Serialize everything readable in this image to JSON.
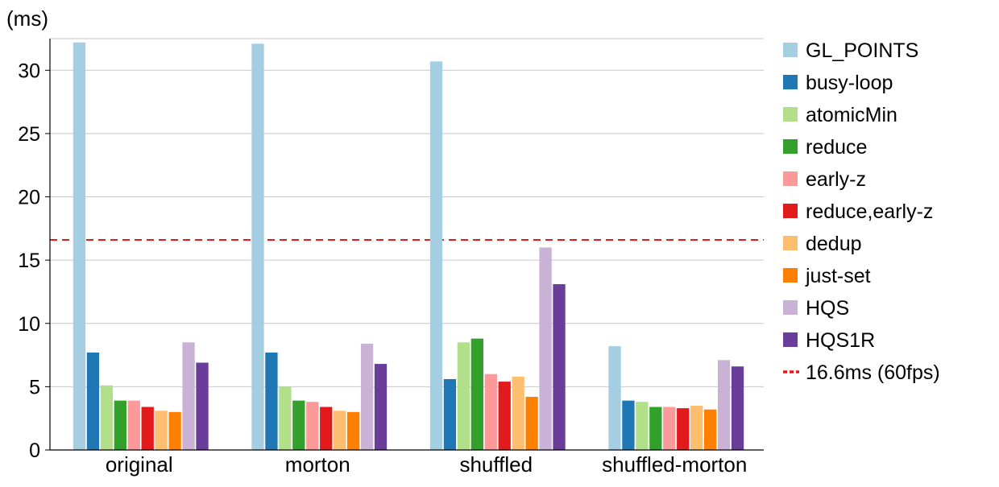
{
  "chart_data": {
    "type": "bar",
    "ylabel": "(ms)",
    "ylim": [
      0,
      32.5
    ],
    "yticks": [
      0,
      5,
      10,
      15,
      20,
      25,
      30
    ],
    "grid": true,
    "legend_position": "right",
    "categories": [
      "original",
      "morton",
      "shuffled",
      "shuffled-morton"
    ],
    "series": [
      {
        "name": "GL_POINTS",
        "color": "#a6cee3",
        "values": [
          32.2,
          32.1,
          30.7,
          8.2
        ]
      },
      {
        "name": "busy-loop",
        "color": "#1f78b4",
        "values": [
          7.7,
          7.7,
          5.6,
          3.9
        ]
      },
      {
        "name": "atomicMin",
        "color": "#b2df8a",
        "values": [
          5.1,
          5.0,
          8.5,
          3.8
        ]
      },
      {
        "name": "reduce",
        "color": "#33a02c",
        "values": [
          3.9,
          3.9,
          8.8,
          3.4
        ]
      },
      {
        "name": "early-z",
        "color": "#fb9a99",
        "values": [
          3.9,
          3.8,
          6.0,
          3.4
        ]
      },
      {
        "name": "reduce,early-z",
        "color": "#e31a1c",
        "values": [
          3.4,
          3.4,
          5.4,
          3.3
        ]
      },
      {
        "name": "dedup",
        "color": "#fdbf6f",
        "values": [
          3.1,
          3.1,
          5.8,
          3.5
        ]
      },
      {
        "name": "just-set",
        "color": "#ff7f00",
        "values": [
          3.0,
          3.0,
          4.2,
          3.2
        ]
      },
      {
        "name": "HQS",
        "color": "#cab2d6",
        "values": [
          8.5,
          8.4,
          16.0,
          7.1
        ]
      },
      {
        "name": "HQS1R",
        "color": "#6a3d9a",
        "values": [
          6.9,
          6.8,
          13.1,
          6.6
        ]
      }
    ],
    "reference_line": {
      "label": "16.6ms (60fps)",
      "value": 16.6,
      "color": "#e31a1c",
      "style": "dashed"
    }
  }
}
